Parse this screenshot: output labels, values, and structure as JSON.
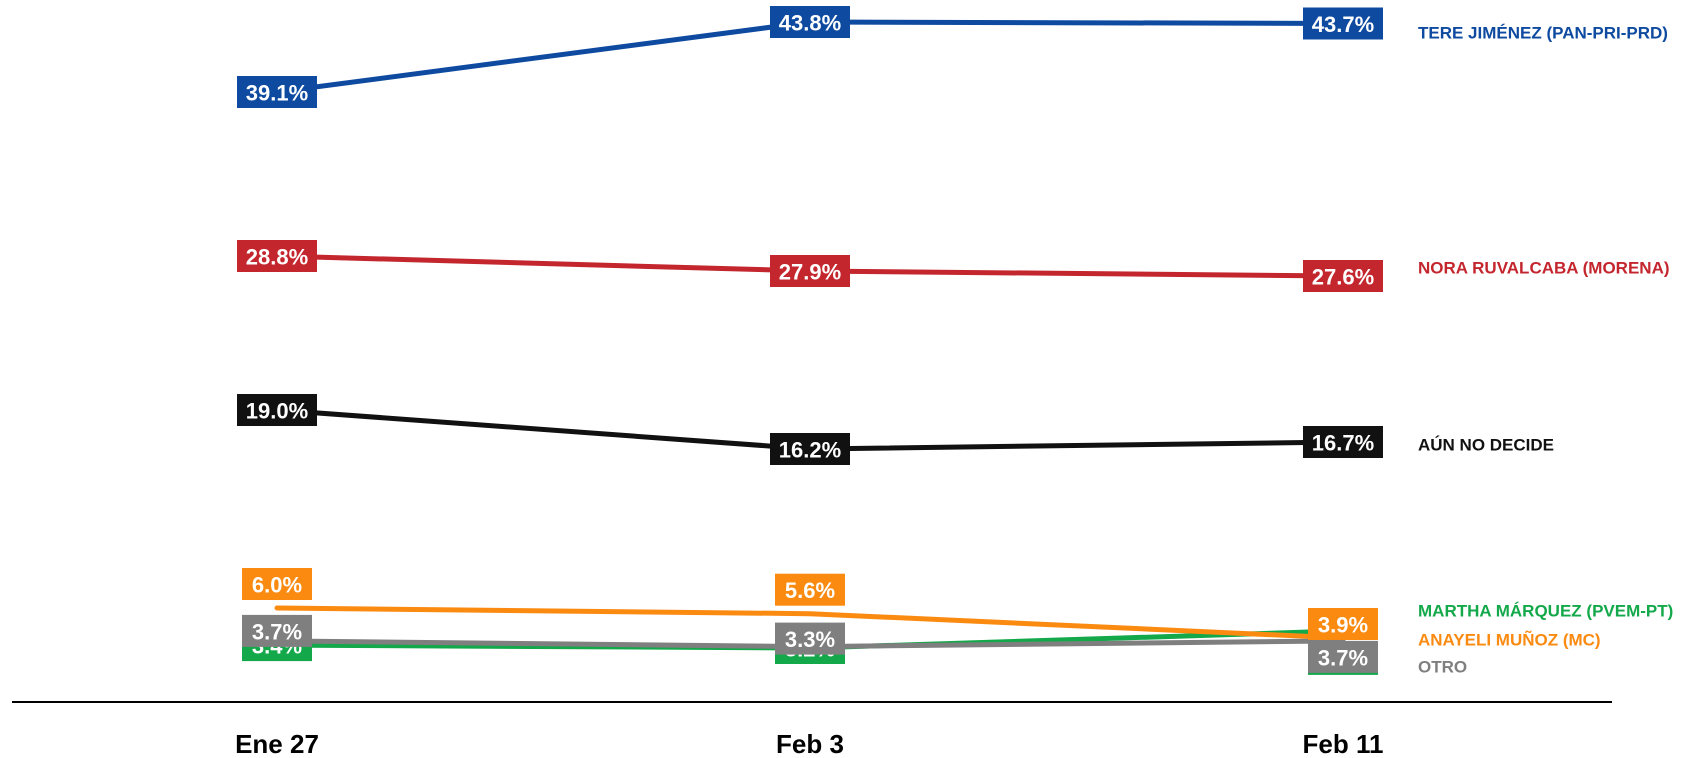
{
  "chart_data": {
    "type": "line",
    "title": "",
    "xlabel": "",
    "ylabel": "",
    "categories": [
      "Ene 27",
      "Feb 3",
      "Feb 11"
    ],
    "grid": false,
    "legend_placement": "right",
    "series": [
      {
        "name": "TERE JIMÉNEZ (PAN-PRI-PRD)",
        "color": "#0d4aa0",
        "values": [
          39.1,
          43.8,
          43.7
        ],
        "labels": [
          "39.1%",
          "43.8%",
          "43.7%"
        ]
      },
      {
        "name": "NORA RUVALCABA (MORENA)",
        "color": "#c4262e",
        "values": [
          28.8,
          27.9,
          27.6
        ],
        "labels": [
          "28.8%",
          "27.9%",
          "27.6%"
        ]
      },
      {
        "name": "AÚN NO DECIDE",
        "color": "#111111",
        "values": [
          19.0,
          16.2,
          16.7
        ],
        "labels": [
          "19.0%",
          "16.2%",
          "16.7%"
        ]
      },
      {
        "name": "MARTHA MÁRQUEZ (PVEM-PT)",
        "color": "#13a84a",
        "values": [
          3.4,
          3.2,
          4.4
        ],
        "labels": [
          "3.4%",
          "3.2%",
          "4.4%"
        ]
      },
      {
        "name": "ANAYELI MUÑOZ (MC)",
        "color": "#fb8a11",
        "values": [
          6.0,
          5.6,
          3.9
        ],
        "labels": [
          "6.0%",
          "5.6%",
          "3.9%"
        ]
      },
      {
        "name": "OTRO",
        "color": "#7f7f7f",
        "values": [
          3.7,
          3.3,
          3.7
        ],
        "labels": [
          "3.7%",
          "3.3%",
          "3.7%"
        ]
      }
    ]
  }
}
